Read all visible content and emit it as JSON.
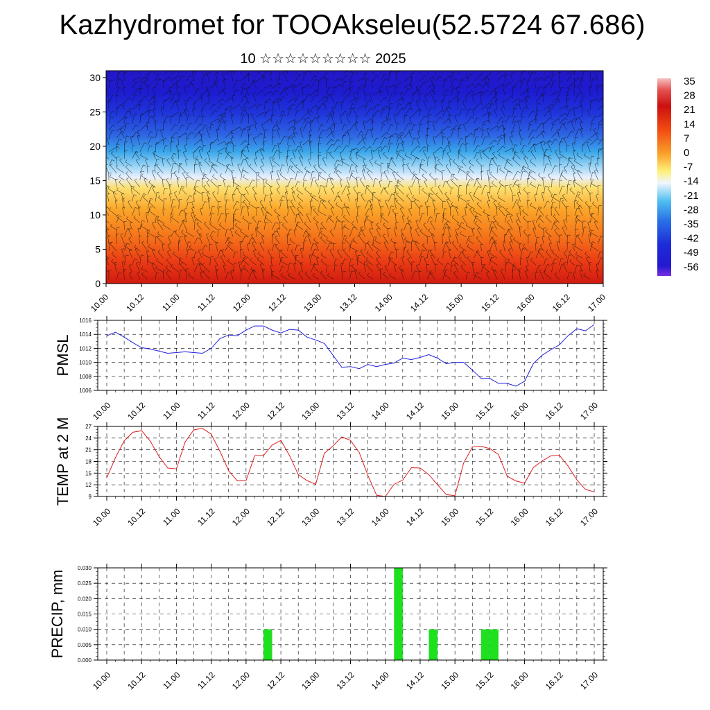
{
  "title": "Kazhydromet for TOOAkseleu(52.5724 67.686)",
  "subtitle": "10 ☆☆☆☆☆☆☆☆☆ 2025",
  "x_ticks": [
    "10.00",
    "10.12",
    "11.00",
    "11.12",
    "12.00",
    "12.12",
    "13.00",
    "13.12",
    "14.00",
    "14.12",
    "15.00",
    "15.12",
    "16.00",
    "16.12",
    "17.00"
  ],
  "colors": {
    "pmsl": "#1f1fdc",
    "temp": "#dc1f1f",
    "precip": "#1ee01e"
  },
  "chart_data": [
    {
      "type": "heatmap",
      "title": "",
      "ylabel": "",
      "ylim": [
        0,
        31
      ],
      "y_ticks": [
        0,
        5,
        10,
        15,
        20,
        25,
        30
      ],
      "x": [
        "10.00",
        "10.12",
        "11.00",
        "11.12",
        "12.00",
        "12.12",
        "13.00",
        "13.12",
        "14.00",
        "14.12",
        "15.00",
        "15.12",
        "16.00",
        "16.12",
        "17.00"
      ],
      "colorbar": {
        "labels": [
          "35",
          "28",
          "21",
          "14",
          "7",
          "0",
          "-7",
          "-14",
          "-21",
          "-28",
          "-35",
          "-42",
          "-49",
          "-56"
        ],
        "values": [
          35,
          28,
          21,
          14,
          7,
          0,
          -7,
          -14,
          -21,
          -28,
          -35,
          -42,
          -49,
          -56
        ]
      },
      "overlay": "wind barbs"
    },
    {
      "type": "line",
      "ylabel": "PMSL",
      "ylim": [
        1006,
        1016
      ],
      "y_ticks": [
        "1016",
        "1014",
        "1012",
        "1010",
        "1008",
        "1006"
      ],
      "grid": true,
      "series": [
        {
          "values": [
            1013.8,
            1014.3,
            1013.6,
            1012.8,
            1012.1,
            1011.9,
            1011.6,
            1011.3,
            1011.4,
            1011.5,
            1011.4,
            1011.3,
            1012.0,
            1013.4,
            1013.9,
            1013.8,
            1014.6,
            1015.2,
            1015.2,
            1014.6,
            1014.2,
            1014.7,
            1014.6,
            1013.6,
            1013.2,
            1012.7,
            1011.0,
            1009.3,
            1009.4,
            1009.1,
            1009.7,
            1009.4,
            1009.7,
            1009.9,
            1010.6,
            1010.4,
            1010.7,
            1011.1,
            1010.6,
            1009.8,
            1010.0,
            1010.0,
            1008.9,
            1007.7,
            1007.7,
            1007.0,
            1007.0,
            1006.6,
            1007.3,
            1009.8,
            1011.0,
            1011.8,
            1012.5,
            1013.8,
            1014.8,
            1014.5,
            1015.4
          ]
        }
      ]
    },
    {
      "type": "line",
      "ylabel": "TEMP at 2 M",
      "ylim": [
        9,
        27
      ],
      "y_ticks": [
        "27",
        "24",
        "21",
        "18",
        "15",
        "12",
        "9"
      ],
      "grid": true,
      "series": [
        {
          "values": [
            13.8,
            19.0,
            23.3,
            25.5,
            25.9,
            23.2,
            19.3,
            16.3,
            16.1,
            23.0,
            26.1,
            26.5,
            25.0,
            20.6,
            15.6,
            13.0,
            13.1,
            19.5,
            19.5,
            22.2,
            23.4,
            19.5,
            14.6,
            13.1,
            12.1,
            20.1,
            22.0,
            24.3,
            23.4,
            20.3,
            14.4,
            9.3,
            9.0,
            12.1,
            13.2,
            16.4,
            16.3,
            14.6,
            12.0,
            9.5,
            9.2,
            17.6,
            21.7,
            21.9,
            21.3,
            19.8,
            14.2,
            13.0,
            12.4,
            16.4,
            18.1,
            19.4,
            19.6,
            16.8,
            13.3,
            10.8,
            10.2
          ]
        }
      ]
    },
    {
      "type": "bar",
      "ylabel": "PRECIP, mm",
      "ylim": [
        0,
        0.03
      ],
      "y_ticks": [
        "0.030",
        "0.025",
        "0.020",
        "0.015",
        "0.010",
        "0.005",
        "0.000"
      ],
      "grid": true,
      "bars": [
        {
          "x": 18.5,
          "value": 0.01
        },
        {
          "x": 33.5,
          "value": 0.03
        },
        {
          "x": 37.5,
          "value": 0.01
        },
        {
          "x": 43.5,
          "value": 0.01
        },
        {
          "x": 44.5,
          "value": 0.01
        }
      ]
    }
  ]
}
